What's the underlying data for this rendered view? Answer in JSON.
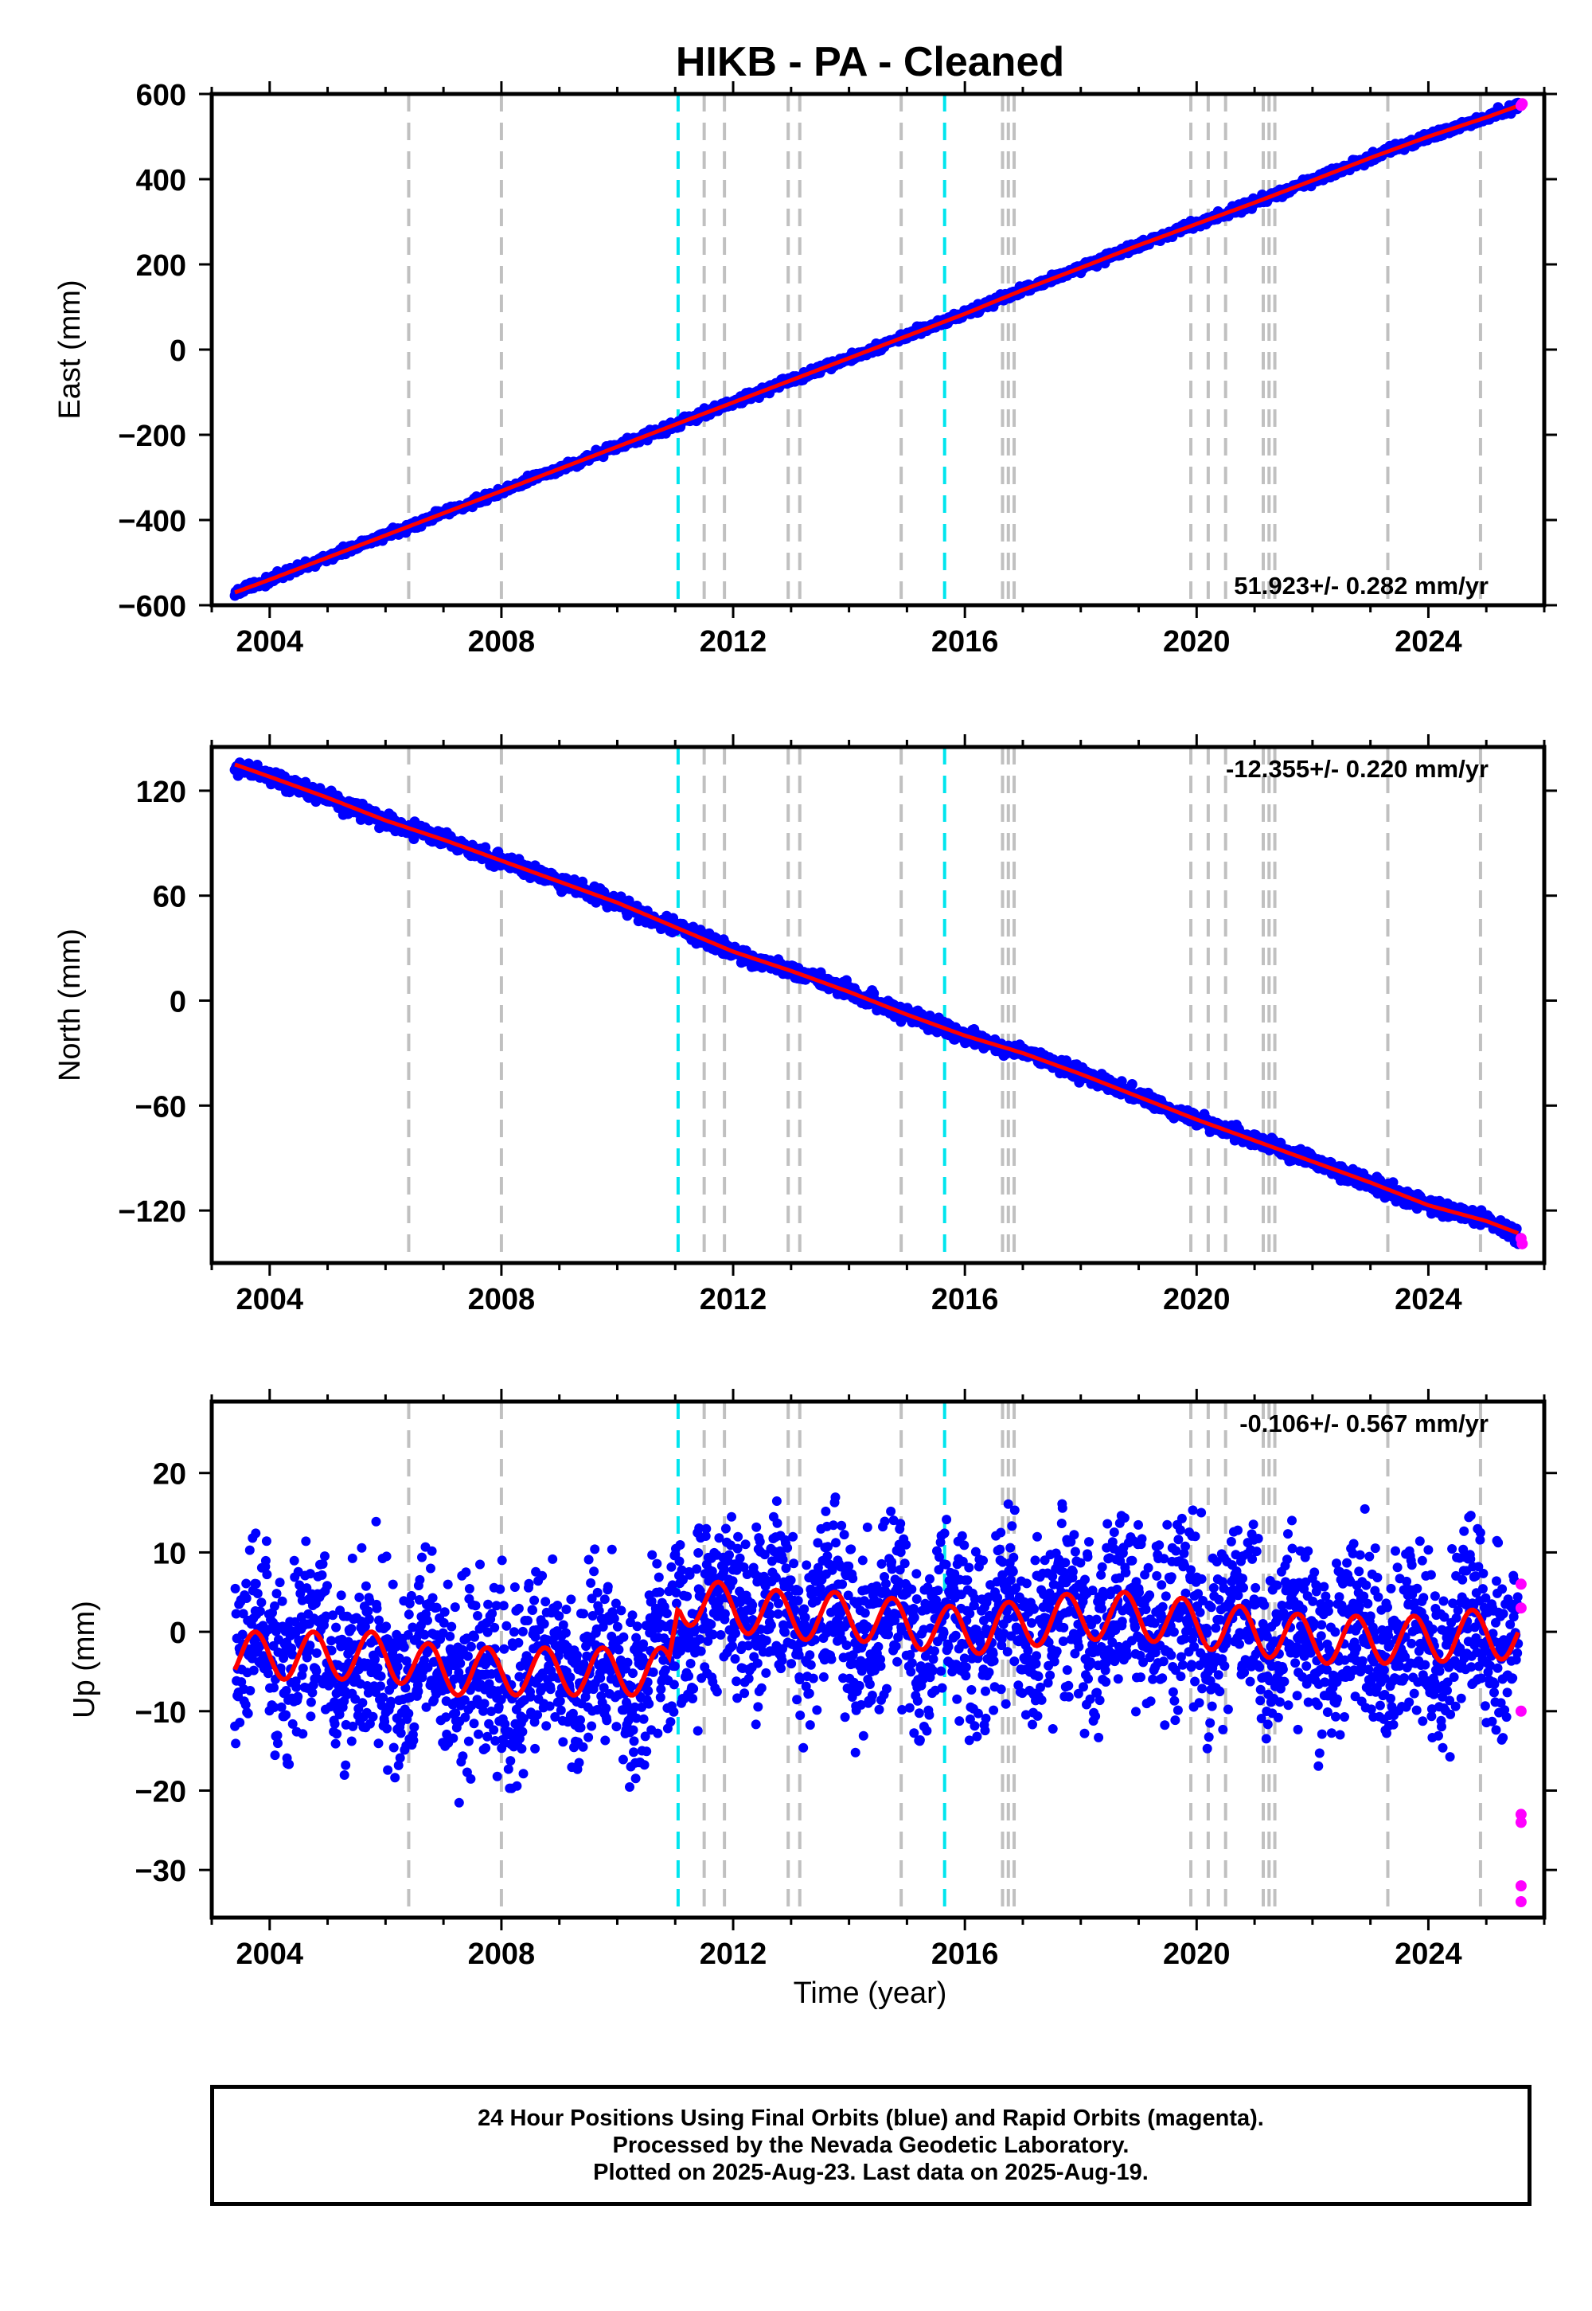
{
  "title": "HIKB  - PA - Cleaned",
  "xlabel": "Time (year)",
  "caption": {
    "line1": "24 Hour Positions Using Final Orbits (blue) and Rapid Orbits (magenta).",
    "line2": "Processed by the Nevada Geodetic Laboratory.",
    "line3": "Plotted on 2025-Aug-23. Last data on 2025-Aug-19."
  },
  "colors": {
    "final_points": "#0000ff",
    "rapid_points": "#ff00ff",
    "model_line": "#ff0000",
    "event_gray": "#c0c0c0",
    "event_cyan": "#00e5ee"
  },
  "chart_data": [
    {
      "type": "scatter",
      "panel": "east",
      "ylabel": "East (mm)",
      "xlim": [
        2003.0,
        2026.0
      ],
      "ylim": [
        -600,
        600
      ],
      "x_ticks": [
        2004,
        2008,
        2012,
        2016,
        2020,
        2024
      ],
      "y_ticks": [
        -600,
        -400,
        -200,
        0,
        200,
        400,
        600
      ],
      "rate_label": "51.923+/- 0.282 mm/yr",
      "rate_position": "bottom-right",
      "series": [
        {
          "role": "final_orbits",
          "x": [
            2003.4,
            2004.0,
            2005.0,
            2006.0,
            2007.0,
            2008.0,
            2009.0,
            2010.0,
            2011.0,
            2012.0,
            2013.0,
            2014.0,
            2015.0,
            2016.0,
            2017.0,
            2018.0,
            2019.0,
            2020.0,
            2021.0,
            2022.0,
            2023.0,
            2024.0,
            2025.0,
            2025.55
          ],
          "y": [
            -570,
            -540,
            -488,
            -436,
            -384,
            -332,
            -280,
            -228,
            -176,
            -124,
            -72,
            -20,
            32,
            84,
            140,
            192,
            245,
            295,
            345,
            397,
            450,
            500,
            545,
            572
          ]
        },
        {
          "role": "rapid_orbits",
          "x": [
            2025.6,
            2025.62
          ],
          "y": [
            573,
            577
          ]
        }
      ]
    },
    {
      "type": "scatter",
      "panel": "north",
      "ylabel": "North (mm)",
      "xlim": [
        2003.0,
        2026.0
      ],
      "ylim": [
        -150,
        145
      ],
      "x_ticks": [
        2004,
        2008,
        2012,
        2016,
        2020,
        2024
      ],
      "y_ticks": [
        -120,
        -60,
        0,
        60,
        120
      ],
      "rate_label": "-12.355+/- 0.220 mm/yr",
      "rate_position": "top-right",
      "series": [
        {
          "role": "final_orbits",
          "x": [
            2003.4,
            2004.0,
            2005.0,
            2006.0,
            2007.0,
            2008.0,
            2009.0,
            2010.0,
            2011.0,
            2012.0,
            2013.0,
            2014.0,
            2015.0,
            2016.0,
            2017.0,
            2018.0,
            2019.0,
            2020.0,
            2021.0,
            2022.0,
            2023.0,
            2024.0,
            2025.0,
            2025.55
          ],
          "y": [
            135,
            128,
            116,
            103,
            92,
            80,
            68,
            56,
            42,
            28,
            17,
            5,
            -8,
            -20,
            -30,
            -42,
            -55,
            -68,
            -80,
            -92,
            -104,
            -117,
            -126,
            -133
          ]
        },
        {
          "role": "rapid_orbits",
          "x": [
            2025.6,
            2025.62
          ],
          "y": [
            -136,
            -139
          ]
        }
      ]
    },
    {
      "type": "scatter",
      "panel": "up",
      "ylabel": "Up (mm)",
      "xlim": [
        2003.0,
        2026.0
      ],
      "ylim": [
        -36,
        29
      ],
      "x_ticks": [
        2004,
        2008,
        2012,
        2016,
        2020,
        2024
      ],
      "y_ticks": [
        -30,
        -20,
        -10,
        0,
        10,
        20
      ],
      "rate_label": "-0.106+/- 0.567 mm/yr",
      "rate_position": "top-right",
      "series": [
        {
          "role": "final_orbits_model",
          "x": [
            2003.4,
            2004.0,
            2005.0,
            2006.0,
            2007.0,
            2008.0,
            2009.0,
            2010.0,
            2010.9,
            2011.05,
            2012.0,
            2013.0,
            2014.0,
            2015.0,
            2016.0,
            2017.0,
            2018.0,
            2019.0,
            2020.0,
            2021.0,
            2022.0,
            2023.0,
            2024.0,
            2025.0,
            2025.55
          ],
          "y": [
            -3,
            -3,
            -3,
            -3,
            -5,
            -5,
            -5,
            -5,
            -5,
            4,
            3,
            2,
            2,
            1,
            0,
            1,
            2,
            2,
            1,
            0,
            -1,
            -1,
            -1,
            0,
            -1
          ]
        },
        {
          "role": "rapid_orbits",
          "x": [
            2025.6,
            2025.6,
            2025.6,
            2025.6,
            2025.6,
            2025.6,
            2025.6
          ],
          "y": [
            6,
            -10,
            -23,
            -24,
            -32,
            -34,
            3
          ]
        }
      ]
    }
  ],
  "event_lines": {
    "gray": [
      2006.4,
      2008.0,
      2011.5,
      2011.85,
      2012.95,
      2013.15,
      2014.9,
      2016.65,
      2016.75,
      2016.85,
      2019.9,
      2020.2,
      2020.5,
      2021.15,
      2021.25,
      2021.35,
      2023.3,
      2024.9
    ],
    "cyan": [
      2011.05,
      2015.65
    ]
  }
}
